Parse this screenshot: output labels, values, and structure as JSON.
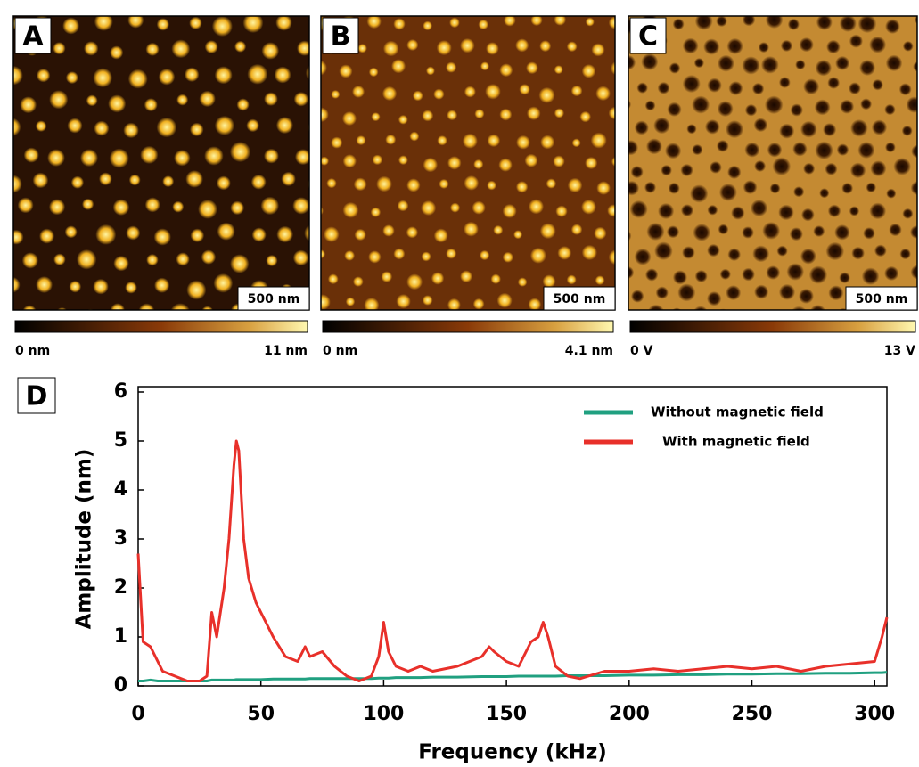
{
  "panels": [
    {
      "label": "A",
      "scale_bar": "500 nm",
      "colorbar_min": "0 nm",
      "colorbar_max": "11 nm"
    },
    {
      "label": "B",
      "scale_bar": "500 nm",
      "colorbar_min": "0 nm",
      "colorbar_max": "4.1 nm"
    },
    {
      "label": "C",
      "scale_bar": "500 nm",
      "colorbar_min": "0 V",
      "colorbar_max": "13 V"
    }
  ],
  "chart_data": {
    "type": "line",
    "panel_label": "D",
    "x_label": "Frequency (kHz)",
    "y_label": "Amplitude (nm)",
    "x": [
      0,
      2,
      5,
      8,
      10,
      15,
      20,
      25,
      28,
      30,
      32,
      35,
      37,
      39,
      40,
      41,
      43,
      45,
      48,
      50,
      55,
      60,
      65,
      68,
      70,
      75,
      80,
      85,
      90,
      95,
      98,
      100,
      102,
      105,
      110,
      115,
      120,
      130,
      140,
      143,
      145,
      150,
      155,
      160,
      163,
      165,
      167,
      170,
      175,
      180,
      190,
      200,
      210,
      220,
      230,
      240,
      250,
      260,
      270,
      280,
      290,
      300,
      303,
      305
    ],
    "series": [
      {
        "name": "Without magnetic field",
        "color": "#20a080",
        "values": [
          0.1,
          0.1,
          0.12,
          0.1,
          0.1,
          0.1,
          0.1,
          0.1,
          0.1,
          0.12,
          0.12,
          0.12,
          0.12,
          0.12,
          0.13,
          0.13,
          0.13,
          0.13,
          0.13,
          0.13,
          0.14,
          0.14,
          0.14,
          0.14,
          0.15,
          0.15,
          0.15,
          0.15,
          0.15,
          0.15,
          0.16,
          0.16,
          0.16,
          0.17,
          0.17,
          0.17,
          0.18,
          0.18,
          0.19,
          0.19,
          0.19,
          0.19,
          0.2,
          0.2,
          0.2,
          0.2,
          0.2,
          0.2,
          0.21,
          0.21,
          0.21,
          0.22,
          0.22,
          0.23,
          0.23,
          0.24,
          0.24,
          0.25,
          0.25,
          0.26,
          0.26,
          0.27,
          0.27,
          0.28
        ]
      },
      {
        "name": "With magnetic field",
        "color": "#e8302a",
        "values": [
          2.7,
          0.9,
          0.8,
          0.5,
          0.3,
          0.2,
          0.1,
          0.1,
          0.2,
          1.5,
          1.0,
          2.0,
          3.0,
          4.5,
          5.0,
          4.8,
          3.0,
          2.2,
          1.7,
          1.5,
          1.0,
          0.6,
          0.5,
          0.8,
          0.6,
          0.7,
          0.4,
          0.2,
          0.1,
          0.2,
          0.6,
          1.3,
          0.7,
          0.4,
          0.3,
          0.4,
          0.3,
          0.4,
          0.6,
          0.8,
          0.7,
          0.5,
          0.4,
          0.9,
          1.0,
          1.3,
          1.0,
          0.4,
          0.2,
          0.15,
          0.3,
          0.3,
          0.35,
          0.3,
          0.35,
          0.4,
          0.35,
          0.4,
          0.3,
          0.4,
          0.45,
          0.5,
          1.0,
          1.4
        ]
      }
    ],
    "xlim": [
      0,
      305
    ],
    "ylim": [
      0,
      6
    ],
    "xticks": [
      0,
      50,
      100,
      150,
      200,
      250,
      300
    ],
    "yticks": [
      0,
      1,
      2,
      3,
      4,
      5,
      6
    ],
    "legend": "upper right"
  }
}
